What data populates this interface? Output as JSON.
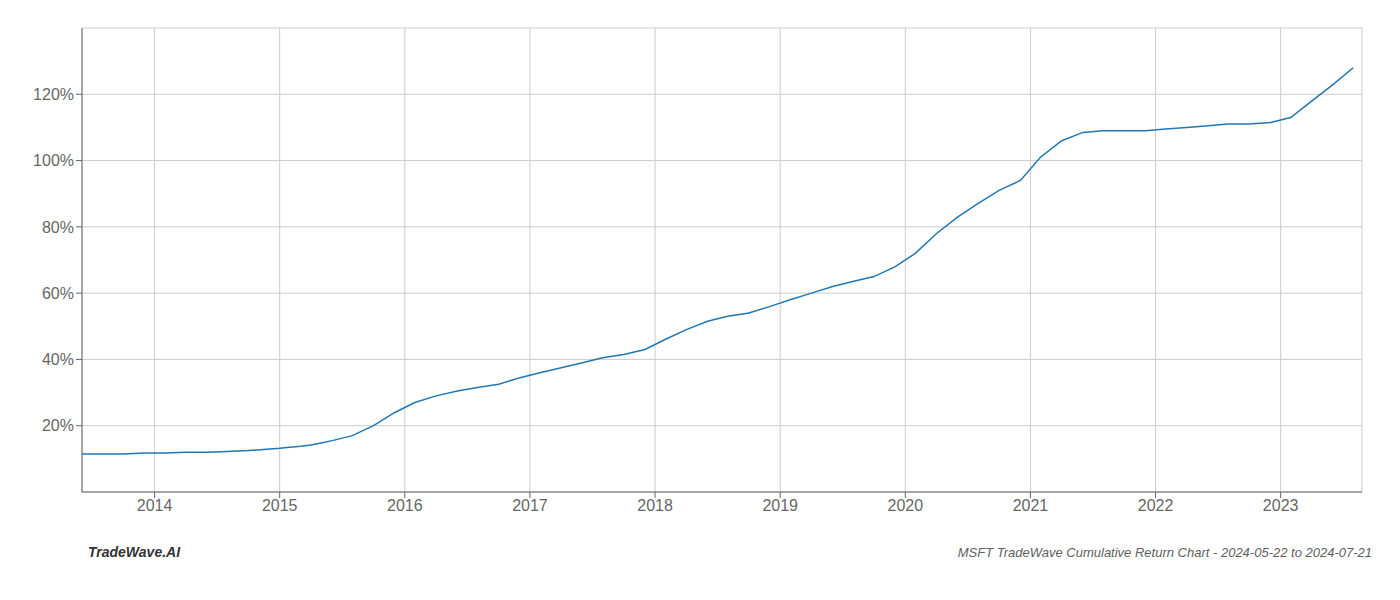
{
  "chart_data": {
    "type": "line",
    "title": "MSFT TradeWave Cumulative Return Chart - 2024-05-22 to 2024-07-21",
    "annotations": [
      "TradeWave.AI"
    ],
    "color": "#1f77b4",
    "grid": true,
    "x": [
      2013.42,
      2013.58,
      2013.75,
      2013.92,
      2014.08,
      2014.25,
      2014.42,
      2014.58,
      2014.75,
      2014.92,
      2015.0,
      2015.08,
      2015.17,
      2015.25,
      2015.33,
      2015.42,
      2015.58,
      2015.75,
      2015.92,
      2016.08,
      2016.25,
      2016.42,
      2016.58,
      2016.75,
      2016.92,
      2017.08,
      2017.25,
      2017.42,
      2017.58,
      2017.75,
      2017.92,
      2018.08,
      2018.25,
      2018.42,
      2018.58,
      2018.75,
      2018.92,
      2019.08,
      2019.25,
      2019.42,
      2019.58,
      2019.75,
      2019.92,
      2020.08,
      2020.25,
      2020.42,
      2020.58,
      2020.75,
      2020.92,
      2021.08,
      2021.25,
      2021.42,
      2021.58,
      2021.75,
      2021.92,
      2022.08,
      2022.25,
      2022.42,
      2022.58,
      2022.75,
      2022.92,
      2023.08,
      2023.25,
      2023.42,
      2023.58
    ],
    "values": [
      11.5,
      11.5,
      11.5,
      11.8,
      11.8,
      12.0,
      12.0,
      12.2,
      12.5,
      13.0,
      13.2,
      13.5,
      13.8,
      14.2,
      14.8,
      15.5,
      17.0,
      20.0,
      24.0,
      27.0,
      29.0,
      30.5,
      31.5,
      32.5,
      34.5,
      36.0,
      37.5,
      39.0,
      40.5,
      41.5,
      43.0,
      46.0,
      49.0,
      51.5,
      53.0,
      54.0,
      56.0,
      58.0,
      60.0,
      62.0,
      63.5,
      65.0,
      68.0,
      72.0,
      78.0,
      83.0,
      87.0,
      91.0,
      94.0,
      101.0,
      106.0,
      108.5,
      109.0,
      109.0,
      109.0,
      109.5,
      110.0,
      110.5,
      111.0,
      111.0,
      111.5,
      113.0,
      118.0,
      123.0,
      128.0
    ],
    "xlim": [
      2013.42,
      2023.65
    ],
    "xticks": [
      2014,
      2015,
      2016,
      2017,
      2018,
      2019,
      2020,
      2021,
      2022,
      2023
    ],
    "ylim": [
      0,
      140
    ],
    "yticks": [
      {
        "value": 20,
        "label": "20%"
      },
      {
        "value": 40,
        "label": "40%"
      },
      {
        "value": 60,
        "label": "60%"
      },
      {
        "value": 80,
        "label": "80%"
      },
      {
        "value": 100,
        "label": "100%"
      },
      {
        "value": 120,
        "label": "120%"
      }
    ]
  }
}
